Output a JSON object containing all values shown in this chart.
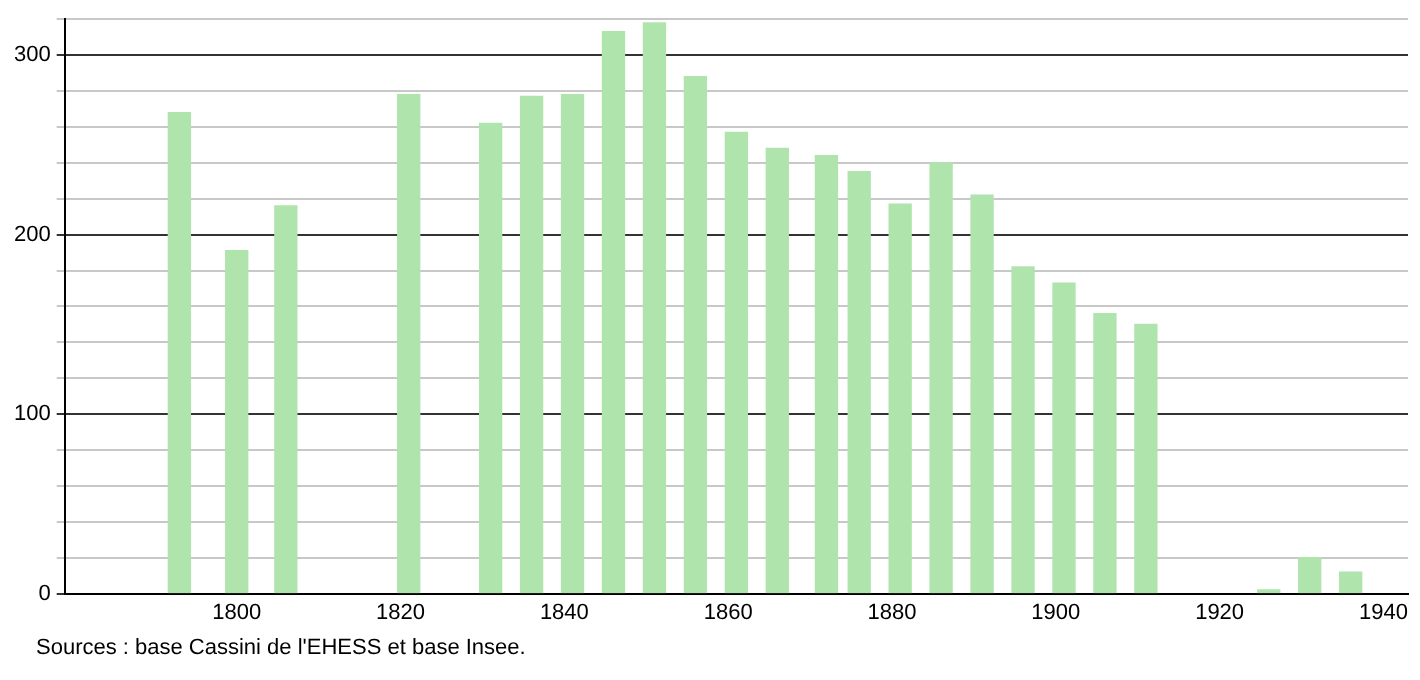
{
  "chart_data": {
    "type": "bar",
    "x": [
      1793,
      1800,
      1806,
      1821,
      1831,
      1836,
      1841,
      1846,
      1851,
      1856,
      1861,
      1866,
      1872,
      1876,
      1881,
      1886,
      1891,
      1896,
      1901,
      1906,
      1911,
      1926,
      1931,
      1936
    ],
    "values": [
      268,
      191,
      216,
      278,
      262,
      277,
      278,
      313,
      318,
      288,
      257,
      248,
      244,
      235,
      217,
      240,
      222,
      182,
      173,
      156,
      150,
      2,
      20,
      12
    ],
    "color": "#b0e4ad",
    "xlim": [
      1779,
      1943
    ],
    "xticks": [
      1800,
      1820,
      1840,
      1860,
      1880,
      1900,
      1920,
      1940
    ],
    "ylim": [
      0,
      320
    ],
    "yticks": [
      0,
      {
        "value": 20,
        "label": null
      },
      {
        "value": 40,
        "label": null
      },
      {
        "value": 60,
        "label": null
      },
      {
        "value": 80,
        "label": null
      },
      100,
      {
        "value": 120,
        "label": null
      },
      {
        "value": 140,
        "label": null
      },
      {
        "value": 160,
        "label": null
      },
      {
        "value": 180,
        "label": null
      },
      200,
      {
        "value": 220,
        "label": null
      },
      {
        "value": 240,
        "label": null
      },
      {
        "value": 260,
        "label": null
      },
      {
        "value": 280,
        "label": null
      },
      300,
      {
        "value": 320,
        "label": null
      }
    ],
    "grid": "y",
    "legend": false,
    "annotations": [
      "Sources : base Cassini de l'EHESS et base Insee."
    ]
  }
}
